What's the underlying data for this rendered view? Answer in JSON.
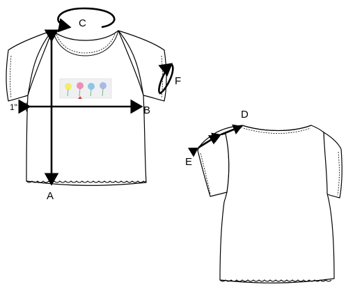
{
  "labels": {
    "a": "A",
    "b": "B",
    "c": "C",
    "d": "D",
    "e": "E",
    "f": "F",
    "inch": "1\""
  },
  "colors": {
    "line": "#000000",
    "background": "#ffffff",
    "flower_yellow": "#f2ec6b",
    "flower_pink": "#f08db5",
    "flower_blue": "#8fc4e8",
    "flower_lavender": "#a9b9e6",
    "flower_stem": "#7bb77b",
    "print_bg": "#eef0f2"
  },
  "icons": [
    "arrow-icon",
    "flower-icon"
  ]
}
